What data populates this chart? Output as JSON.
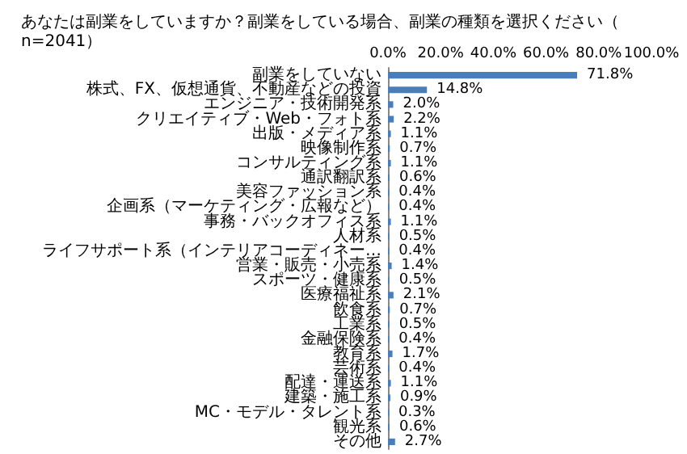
{
  "chart_data": {
    "type": "bar",
    "orientation": "horizontal",
    "title": "あなたは副業をしていますか？副業をしている場合、副業の種類を選択ください（n=2041）",
    "categories": [
      "副業をしていない",
      "株式、FX、仮想通貨、不動産などの投資",
      "エンジニア・技術開発系",
      "クリエイティブ・Web・フォト系",
      "出版・メディア系",
      "映像制作系",
      "コンサルティング系",
      "通訳翻訳系",
      "美容ファッション系",
      "企画系（マーケティング・広報など）",
      "事務・バックオフィス系",
      "人材系",
      "ライフサポート系（インテリアコーディネー…",
      "営業・販売・小売系",
      "スポーツ・健康系",
      "医療福祉系",
      "飲食系",
      "工業系",
      "金融保険系",
      "教育系",
      "芸術系",
      "配達・運送系",
      "建築・施工系",
      "MC・モデル・タレント系",
      "観光系",
      "その他"
    ],
    "values": [
      71.8,
      14.8,
      2.0,
      2.2,
      1.1,
      0.7,
      1.1,
      0.6,
      0.4,
      0.4,
      1.1,
      0.5,
      0.4,
      1.4,
      0.5,
      2.1,
      0.7,
      0.5,
      0.4,
      1.7,
      0.4,
      1.1,
      0.9,
      0.3,
      0.6,
      2.7
    ],
    "value_labels": [
      "71.8%",
      "14.8%",
      "2.0%",
      "2.2%",
      "1.1%",
      "0.7%",
      "1.1%",
      "0.6%",
      "0.4%",
      "0.4%",
      "1.1%",
      "0.5%",
      "0.4%",
      "1.4%",
      "0.5%",
      "2.1%",
      "0.7%",
      "0.5%",
      "0.4%",
      "1.7%",
      "0.4%",
      "1.1%",
      "0.9%",
      "0.3%",
      "0.6%",
      "2.7%"
    ],
    "color": "#4a7ebb",
    "xlim": [
      0,
      100
    ],
    "xticks": [
      {
        "value": 0,
        "label": "0.0%"
      },
      {
        "value": 20,
        "label": "20.0%"
      },
      {
        "value": 40,
        "label": "40.0%"
      },
      {
        "value": 60,
        "label": "60.0%"
      },
      {
        "value": 80,
        "label": "80.0%"
      },
      {
        "value": 100,
        "label": "100.0%"
      }
    ],
    "grid": false
  }
}
